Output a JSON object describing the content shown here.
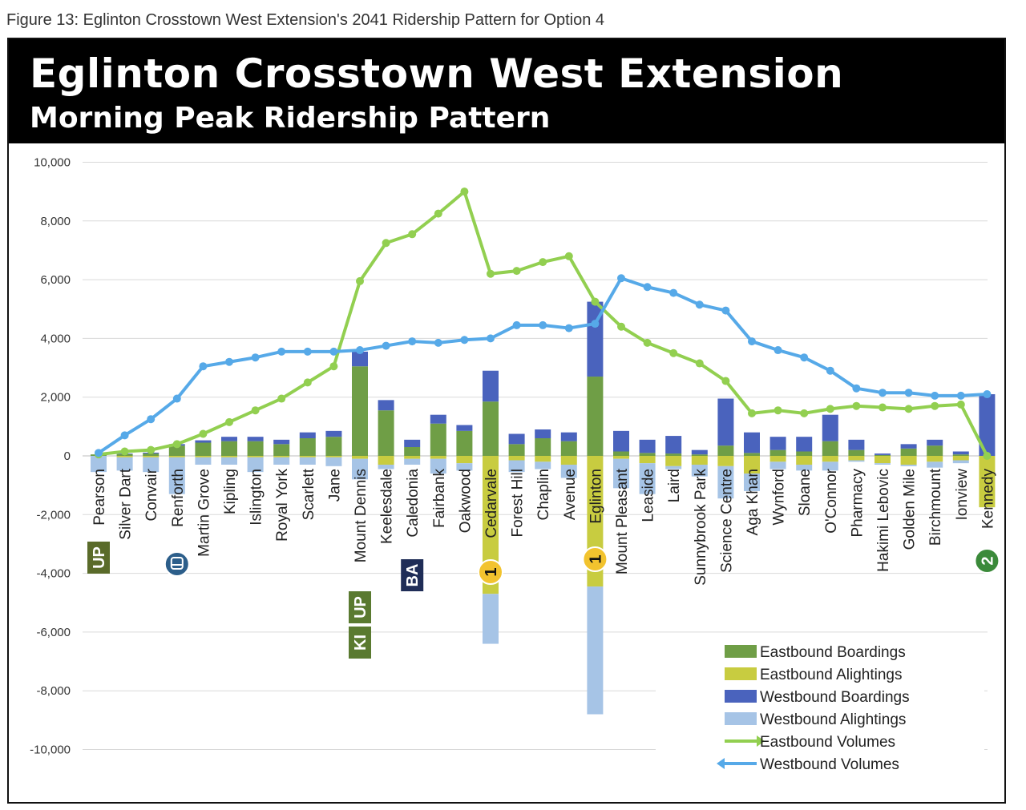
{
  "figure_caption": "Figure 13: Eglinton Crosstown West Extension's 2041 Ridership Pattern for Option 4",
  "chart_data": {
    "type": "bar",
    "title": "Eglinton Crosstown West Extension",
    "subtitle": "Morning Peak Ridership Pattern",
    "ylim": [
      -10000,
      10000
    ],
    "y_ticks": [
      "10,000",
      "8,000",
      "6,000",
      "4,000",
      "2,000",
      "0",
      "-2,000",
      "-4,000",
      "-6,000",
      "-8,000",
      "-10,000"
    ],
    "y_tick_values": [
      10000,
      8000,
      6000,
      4000,
      2000,
      0,
      -2000,
      -4000,
      -6000,
      -8000,
      -10000
    ],
    "grid": true,
    "legend_position": "bottom-right",
    "categories": [
      "Pearson",
      "Silver Dart",
      "Convair",
      "Renforth",
      "Martin Grove",
      "Kipling",
      "Islington",
      "Royal York",
      "Scarlett",
      "Jane",
      "Mount Dennis",
      "Keelesdale",
      "Caledonia",
      "Fairbank",
      "Oakwood",
      "Cedarvale",
      "Forest Hill",
      "Chaplin",
      "Avenue",
      "Eglinton",
      "Mount Pleasant",
      "Leaside",
      "Laird",
      "Sunnybrook Park",
      "Science Centre",
      "Aga Khan",
      "Wynford",
      "Sloane",
      "O'Connor",
      "Pharmacy",
      "Hakimi Lebovic",
      "Golden Mile",
      "Birchmount",
      "Ionview",
      "Kennedy"
    ],
    "series": [
      {
        "name": "Eastbound Boardings",
        "kind": "bar",
        "color": "#6f9e46",
        "values": [
          50,
          60,
          80,
          350,
          450,
          500,
          500,
          400,
          600,
          650,
          3050,
          1550,
          300,
          1100,
          850,
          1850,
          400,
          600,
          500,
          2700,
          150,
          100,
          80,
          50,
          350,
          100,
          200,
          150,
          500,
          200,
          30,
          250,
          350,
          50,
          0
        ]
      },
      {
        "name": "Westbound Boardings",
        "kind": "bar",
        "color": "#4a63bd",
        "values": [
          0,
          20,
          30,
          50,
          80,
          150,
          150,
          150,
          200,
          200,
          500,
          350,
          250,
          300,
          200,
          1050,
          350,
          300,
          300,
          2550,
          700,
          450,
          600,
          150,
          1600,
          700,
          450,
          500,
          900,
          350,
          50,
          150,
          200,
          100,
          2100
        ]
      },
      {
        "name": "Eastbound Alightings",
        "kind": "bar",
        "color": "#c8cc40",
        "values": [
          0,
          50,
          50,
          50,
          50,
          50,
          50,
          50,
          50,
          50,
          100,
          300,
          100,
          100,
          250,
          4700,
          150,
          200,
          300,
          4450,
          100,
          250,
          350,
          300,
          350,
          600,
          200,
          300,
          200,
          150,
          250,
          300,
          200,
          150,
          1750
        ]
      },
      {
        "name": "Westbound Alightings",
        "kind": "bar",
        "color": "#a6c4e6",
        "values": [
          550,
          450,
          500,
          1250,
          250,
          250,
          500,
          250,
          250,
          300,
          700,
          150,
          200,
          500,
          250,
          1700,
          400,
          250,
          450,
          4350,
          1000,
          1050,
          100,
          400,
          1100,
          600,
          250,
          200,
          300,
          50,
          50,
          50,
          200,
          100,
          0
        ]
      },
      {
        "name": "Eastbound Volumes",
        "kind": "line",
        "color": "#92cf50",
        "values": [
          50,
          150,
          200,
          400,
          750,
          1150,
          1550,
          1950,
          2500,
          3050,
          5950,
          7250,
          7550,
          8250,
          9000,
          6200,
          6300,
          6600,
          6800,
          5250,
          4400,
          3850,
          3500,
          3150,
          2550,
          1450,
          1550,
          1450,
          1600,
          1700,
          1650,
          1600,
          1700,
          1750,
          0
        ]
      },
      {
        "name": "Westbound Volumes",
        "kind": "line",
        "color": "#56a9e8",
        "values": [
          100,
          700,
          1250,
          1950,
          3050,
          3200,
          3350,
          3550,
          3550,
          3550,
          3600,
          3750,
          3900,
          3850,
          3950,
          4000,
          4450,
          4450,
          4350,
          4500,
          6050,
          5750,
          5550,
          5150,
          4950,
          3900,
          3600,
          3350,
          2900,
          2300,
          2150,
          2150,
          2050,
          2050,
          2100
        ]
      }
    ],
    "transit_badges": [
      {
        "station": "Pearson",
        "labels": [
          "UP"
        ],
        "color": "#5a6b2a",
        "shape": "square"
      },
      {
        "station": "Renforth",
        "labels": [
          "bus-icon"
        ],
        "color": "#2c5e8a",
        "shape": "circle"
      },
      {
        "station": "Mount Dennis",
        "labels": [
          "UP",
          "KI"
        ],
        "color": "#5a7a30",
        "shape": "square"
      },
      {
        "station": "Caledonia",
        "labels": [
          "BA"
        ],
        "color": "#1f2d57",
        "shape": "square"
      },
      {
        "station": "Cedarvale",
        "labels": [
          "1"
        ],
        "color": "#f2c32e",
        "shape": "circle"
      },
      {
        "station": "Eglinton",
        "labels": [
          "1"
        ],
        "color": "#f2c32e",
        "shape": "circle"
      },
      {
        "station": "Kennedy",
        "labels": [
          "2"
        ],
        "color": "#3b8a3a",
        "shape": "circle"
      }
    ]
  }
}
